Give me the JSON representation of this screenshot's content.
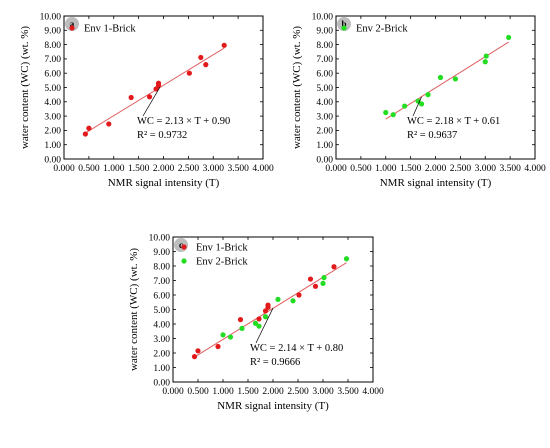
{
  "chart_data": [
    {
      "type": "scatter",
      "panel_label": "a",
      "xlabel": "NMR signal intensity (T)",
      "ylabel": "water content (WC) (wt. %)",
      "xlim": [
        0,
        4
      ],
      "ylim": [
        0,
        10
      ],
      "x_ticks": [
        "0.000",
        "0.500",
        "1.000",
        "1.500",
        "2.000",
        "2.500",
        "3.000",
        "3.500",
        "4.000"
      ],
      "y_ticks": [
        "0.00",
        "1.00",
        "2.00",
        "3.00",
        "4.00",
        "5.00",
        "6.00",
        "7.00",
        "8.00",
        "9.00",
        "10.00"
      ],
      "legend_position": "top-left",
      "series": [
        {
          "name": "Env 1-Brick",
          "color": "#e31a1c",
          "x": [
            0.43,
            0.5,
            0.9,
            1.35,
            1.72,
            1.85,
            1.9,
            1.9,
            2.52,
            2.75,
            2.85,
            3.22
          ],
          "y": [
            1.75,
            2.15,
            2.45,
            4.3,
            4.35,
            4.9,
            5.3,
            5.15,
            6.0,
            7.1,
            6.6,
            7.95
          ]
        }
      ],
      "fit": {
        "slope": 2.13,
        "intercept": 0.9,
        "x_range": [
          0.43,
          3.22
        ],
        "color": "#e06060"
      },
      "equation": "WC = 2.13 × T + 0.90",
      "r_squared": "R² = 0.9732"
    },
    {
      "type": "scatter",
      "panel_label": "b",
      "xlabel": "NMR signal intensity (T)",
      "ylabel": "water content (WC) (wt. %)",
      "xlim": [
        0,
        4
      ],
      "ylim": [
        0,
        10
      ],
      "x_ticks": [
        "0.000",
        "0.500",
        "1.000",
        "1.500",
        "2.000",
        "2.500",
        "3.000",
        "3.500",
        "4.000"
      ],
      "y_ticks": [
        "0.00",
        "1.00",
        "2.00",
        "3.00",
        "4.00",
        "5.00",
        "6.00",
        "7.00",
        "8.00",
        "9.00",
        "10.00"
      ],
      "legend_position": "top-left",
      "series": [
        {
          "name": "Env 2-Brick",
          "color": "#22dd22",
          "x": [
            1.0,
            1.15,
            1.38,
            1.65,
            1.72,
            1.85,
            2.1,
            2.4,
            3.0,
            3.02,
            3.47
          ],
          "y": [
            3.25,
            3.1,
            3.7,
            4.05,
            3.85,
            4.5,
            5.7,
            5.6,
            6.8,
            7.2,
            8.5
          ]
        }
      ],
      "fit": {
        "slope": 2.18,
        "intercept": 0.61,
        "x_range": [
          1.0,
          3.47
        ],
        "color": "#e06060"
      },
      "equation": "WC = 2.18 × T + 0.61",
      "r_squared": "R² = 0.9637"
    },
    {
      "type": "scatter",
      "panel_label": "c",
      "xlabel": "NMR signal intensity (T)",
      "ylabel": "water content (WC) (wt. %)",
      "xlim": [
        0,
        4
      ],
      "ylim": [
        0,
        10
      ],
      "x_ticks": [
        "0.000",
        "0.500",
        "1.000",
        "1.500",
        "2.000",
        "2.500",
        "3.000",
        "3.500",
        "4.000"
      ],
      "y_ticks": [
        "0.00",
        "1.00",
        "2.00",
        "3.00",
        "4.00",
        "5.00",
        "6.00",
        "7.00",
        "8.00",
        "9.00",
        "10.00"
      ],
      "legend_position": "top-left",
      "series": [
        {
          "name": "Env 1-Brick",
          "color": "#e31a1c",
          "x": [
            0.43,
            0.5,
            0.9,
            1.35,
            1.72,
            1.85,
            1.9,
            1.9,
            2.52,
            2.75,
            2.85,
            3.22
          ],
          "y": [
            1.75,
            2.15,
            2.45,
            4.3,
            4.35,
            4.9,
            5.3,
            5.15,
            6.0,
            7.1,
            6.6,
            7.95
          ]
        },
        {
          "name": "Env 2-Brick",
          "color": "#22dd22",
          "x": [
            1.0,
            1.15,
            1.38,
            1.65,
            1.72,
            1.85,
            2.1,
            2.4,
            3.0,
            3.02,
            3.47
          ],
          "y": [
            3.25,
            3.1,
            3.7,
            4.05,
            3.85,
            4.5,
            5.7,
            5.6,
            6.8,
            7.2,
            8.5
          ]
        }
      ],
      "fit": {
        "slope": 2.14,
        "intercept": 0.8,
        "x_range": [
          0.43,
          3.47
        ],
        "color": "#e06060"
      },
      "equation": "WC = 2.14 × T + 0.80",
      "r_squared": "R² = 0.9666"
    }
  ]
}
